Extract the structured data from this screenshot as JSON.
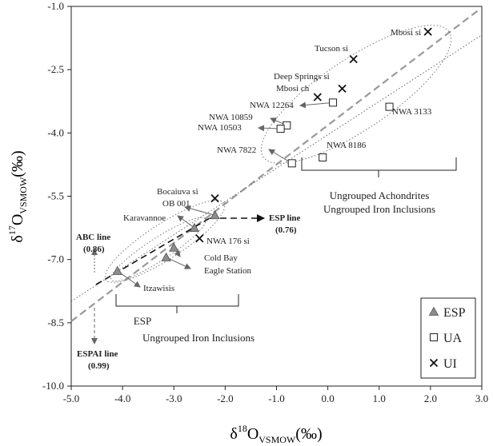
{
  "chart_data": {
    "type": "scatter",
    "xlabel_main": "δ",
    "xlabel_sup": "18",
    "xlabel_O": "O",
    "xlabel_sub": "VSMOW",
    "xlabel_unit": "(‰)",
    "ylabel_main": "δ",
    "ylabel_sup": "17",
    "ylabel_O": "O",
    "ylabel_sub": "VSMOW",
    "ylabel_unit": "(‰)",
    "xlim": [
      -5.0,
      3.0
    ],
    "ylim": [
      -10.0,
      -1.0
    ],
    "xticks": [
      -5.0,
      -4.0,
      -3.0,
      -2.0,
      -1.0,
      0.0,
      1.0,
      2.0,
      3.0
    ],
    "yticks": [
      -1.0,
      -2.5,
      -4.0,
      -5.5,
      -7.0,
      -8.5,
      -10.0
    ],
    "xtick_labels": [
      "-5.0",
      "-4.0",
      "-3.0",
      "-2.0",
      "-1.0",
      "0.0",
      "1.0",
      "2.0",
      "3.0"
    ],
    "ytick_labels": [
      "-1.0",
      "-2.5",
      "-4.0",
      "-5.5",
      "-7.0",
      "-8.5",
      "-10.0"
    ],
    "series": [
      {
        "name": "ESP",
        "marker": "triangle",
        "points": [
          {
            "label": "Itzawisis",
            "x": -4.1,
            "y": -7.27
          },
          {
            "label": "Eagle Station",
            "x": -3.15,
            "y": -6.95
          },
          {
            "label": "Cold Bay",
            "x": -3.0,
            "y": -6.72
          },
          {
            "label": "Karavannoe",
            "x": -2.6,
            "y": -6.25
          },
          {
            "label": "OB 001",
            "x": -2.2,
            "y": -5.95
          }
        ]
      },
      {
        "name": "UA",
        "marker": "square",
        "points": [
          {
            "label": "NWA 3133",
            "x": 1.2,
            "y": -3.38
          },
          {
            "label": "NWA 12264",
            "x": 0.1,
            "y": -3.28
          },
          {
            "label": "NWA 10859",
            "x": -0.8,
            "y": -3.82
          },
          {
            "label": "NWA 10503",
            "x": -0.92,
            "y": -3.9
          },
          {
            "label": "NWA 8186",
            "x": -0.1,
            "y": -4.58
          },
          {
            "label": "NWA 7822",
            "x": -0.7,
            "y": -4.72
          }
        ]
      },
      {
        "name": "UI",
        "marker": "x",
        "points": [
          {
            "label": "Mbosi si",
            "x": 1.95,
            "y": -1.6
          },
          {
            "label": "Tucson si",
            "x": 0.5,
            "y": -2.25
          },
          {
            "label": "Deep Springs si",
            "x": 0.28,
            "y": -2.95
          },
          {
            "label": "Mbosi ch",
            "x": -0.2,
            "y": -3.15
          },
          {
            "label": "Bocaiuva si",
            "x": -2.2,
            "y": -5.55
          },
          {
            "label": "NWA 176 si",
            "x": -2.5,
            "y": -6.5
          }
        ]
      }
    ],
    "annotations": {
      "esp_line": "ESP line",
      "esp_line_slope": "(0.76)",
      "abc_line": "ABC line",
      "abc_line_slope": "(0.86)",
      "espai_line": "ESPAI line",
      "espai_line_slope": "(0.99)",
      "group_upper_1": "Ungrouped Achondrites",
      "group_upper_2": "Ungrouped Iron Inclusions",
      "group_lower_1": "ESP",
      "group_lower_2": "Ungrouped Iron Inclusions"
    },
    "legend": {
      "position": "bottom-right",
      "entries": [
        "ESP",
        "UA",
        "UI"
      ]
    }
  }
}
